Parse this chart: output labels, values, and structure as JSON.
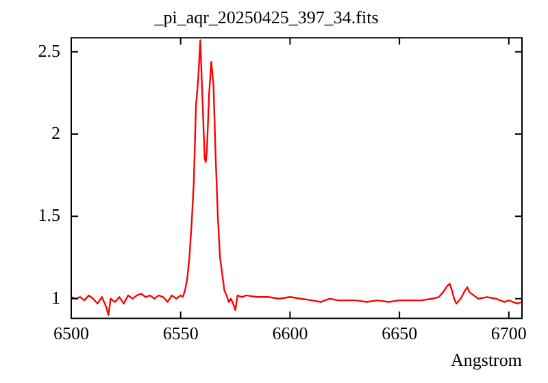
{
  "chart_data": {
    "type": "line",
    "title": "_pi_aqr_20250425_397_34.fits",
    "xlabel": "Angstrom",
    "x": [
      6500,
      6502,
      6504,
      6506,
      6508,
      6510,
      6512,
      6514,
      6516,
      6517,
      6518,
      6520,
      6522,
      6524,
      6526,
      6528,
      6530,
      6532,
      6534,
      6536,
      6538,
      6540,
      6542,
      6544,
      6546,
      6548,
      6550,
      6551,
      6552,
      6553,
      6554,
      6555,
      6556,
      6557,
      6558,
      6559,
      6560,
      6561,
      6561.5,
      6562,
      6563,
      6564,
      6565,
      6566,
      6567,
      6568,
      6569,
      6570,
      6571,
      6572,
      6573,
      6574,
      6575,
      6576,
      6578,
      6580,
      6585,
      6590,
      6595,
      6600,
      6605,
      6610,
      6614,
      6618,
      6622,
      6626,
      6630,
      6635,
      6640,
      6645,
      6650,
      6655,
      6660,
      6665,
      6668,
      6670,
      6672,
      6673,
      6674,
      6675,
      6676,
      6678,
      6680,
      6681,
      6682,
      6684,
      6686,
      6690,
      6694,
      6698,
      6700,
      6702,
      6704,
      6706
    ],
    "series": [
      {
        "color": "#ff0000",
        "values": [
          1.01,
          1.0,
          1.01,
          0.99,
          1.02,
          1.0,
          0.97,
          1.01,
          0.95,
          0.9,
          1.0,
          0.98,
          1.01,
          0.97,
          1.02,
          1.0,
          1.02,
          1.03,
          1.01,
          1.02,
          1.0,
          1.02,
          1.01,
          0.98,
          1.02,
          1.0,
          1.02,
          1.01,
          1.05,
          1.12,
          1.25,
          1.45,
          1.7,
          2.17,
          2.33,
          2.57,
          2.2,
          1.85,
          1.83,
          1.9,
          2.24,
          2.44,
          2.3,
          1.86,
          1.5,
          1.25,
          1.15,
          1.05,
          1.02,
          0.98,
          1.0,
          0.97,
          0.93,
          1.02,
          1.01,
          1.02,
          1.01,
          1.01,
          1.0,
          1.01,
          1.0,
          0.99,
          0.98,
          1.0,
          0.99,
          0.99,
          0.99,
          0.98,
          0.99,
          0.98,
          0.99,
          0.99,
          0.99,
          1.0,
          1.01,
          1.04,
          1.08,
          1.09,
          1.05,
          1.0,
          0.97,
          1.0,
          1.05,
          1.07,
          1.04,
          1.02,
          1.0,
          1.01,
          1.0,
          0.98,
          0.99,
          0.98,
          0.97,
          0.98
        ]
      }
    ],
    "xlim": [
      6500,
      6706
    ],
    "ylim": [
      0.88,
      2.585
    ],
    "xticks": [
      6500,
      6550,
      6600,
      6650,
      6700
    ],
    "yticks": [
      1,
      1.5,
      2,
      2.5
    ],
    "grid": false,
    "legend": false,
    "marker": "none",
    "line_style": "solid"
  }
}
